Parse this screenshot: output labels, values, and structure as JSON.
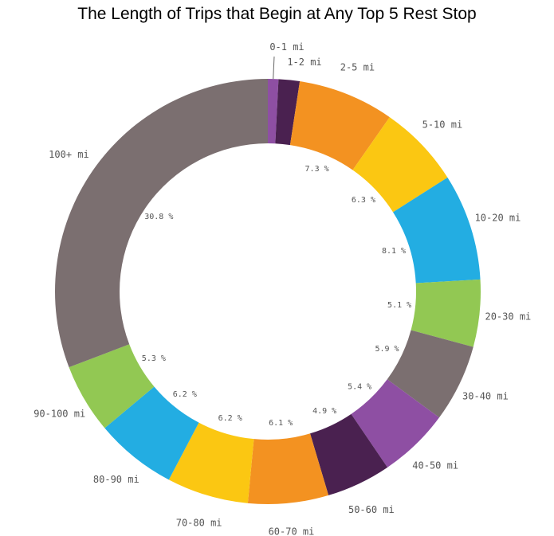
{
  "chart_data": {
    "type": "pie",
    "title": "The Length of Trips that Begin at Any Top 5 Rest Stop",
    "categories": [
      "0-1 mi",
      "1-2 mi",
      "2-5 mi",
      "5-10 mi",
      "10-20 mi",
      "20-30 mi",
      "30-40 mi",
      "40-50 mi",
      "50-60 mi",
      "60-70 mi",
      "70-80 mi",
      "80-90 mi",
      "90-100 mi",
      "100+ mi"
    ],
    "values": [
      0.8,
      1.6,
      7.3,
      6.3,
      8.1,
      5.1,
      5.9,
      5.4,
      4.9,
      6.1,
      6.2,
      6.2,
      5.3,
      30.8
    ],
    "value_labels": [
      "",
      "",
      "7.3 %",
      "6.3 %",
      "8.1 %",
      "5.1 %",
      "5.9 %",
      "5.4 %",
      "4.9 %",
      "6.1 %",
      "6.2 %",
      "6.2 %",
      "5.3 %",
      "30.8 %"
    ],
    "colors": [
      "#8e4fa3",
      "#4a2150",
      "#f39221",
      "#fbc712",
      "#23ade2",
      "#92c853",
      "#7b6f70",
      "#8e4fa3",
      "#4a2150",
      "#f39221",
      "#fbc712",
      "#23ade2",
      "#92c853",
      "#7b6f70"
    ],
    "donut": true,
    "legend": "none"
  }
}
